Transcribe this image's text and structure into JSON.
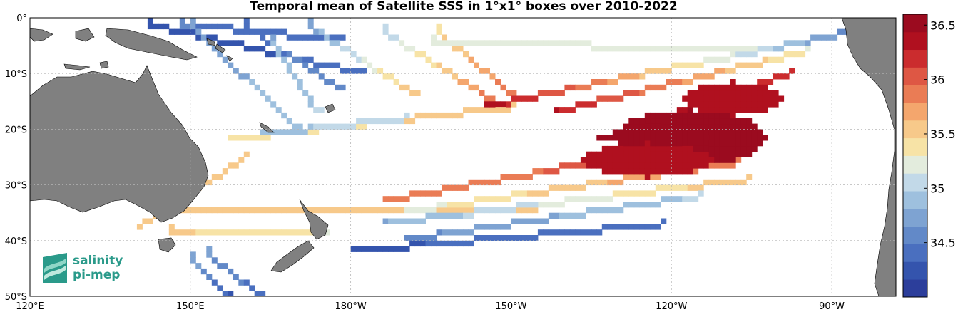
{
  "title": "Temporal mean of Satellite SSS in 1°x1° boxes over 2010-2022",
  "logo": {
    "line1": "salinity",
    "line2": "pi-mep"
  },
  "axes": {
    "x_ticks": [
      {
        "lon": 120,
        "label": "120°E"
      },
      {
        "lon": 150,
        "label": "150°E"
      },
      {
        "lon": 180,
        "label": "180°W"
      },
      {
        "lon": 210,
        "label": "150°W"
      },
      {
        "lon": 240,
        "label": "120°W"
      },
      {
        "lon": 270,
        "label": "90°W"
      }
    ],
    "y_ticks": [
      {
        "lat": 0,
        "label": "0°"
      },
      {
        "lat": -10,
        "label": "10°S"
      },
      {
        "lat": -20,
        "label": "20°S"
      },
      {
        "lat": -30,
        "label": "30°S"
      },
      {
        "lat": -40,
        "label": "40°S"
      },
      {
        "lat": -50,
        "label": "50°S"
      }
    ],
    "lon_range": [
      120,
      282
    ],
    "lat_range": [
      -50,
      0
    ],
    "grid": true
  },
  "colorbar": {
    "range": [
      34,
      36.6
    ],
    "ticks": [
      "36.5",
      "36",
      "35.5",
      "35",
      "34.5"
    ],
    "tick_values": [
      36.5,
      36.0,
      35.5,
      35.0,
      34.5
    ],
    "colors": [
      "#2c3e9b",
      "#3454ad",
      "#4a6fbf",
      "#6289c8",
      "#7ea3d2",
      "#9ec0de",
      "#c2d9e8",
      "#e3ecdd",
      "#f7e3a6",
      "#f7c98a",
      "#f4a66d",
      "#ea7c55",
      "#de5744",
      "#cb2c2e",
      "#b0101f",
      "#9b0b1f"
    ]
  },
  "chart_data": {
    "type": "heatmap",
    "title": "Temporal mean of Satellite SSS in 1°x1° boxes over 2010-2022",
    "variable": "SSS",
    "color_range": [
      34,
      36.6
    ],
    "xlabel": "",
    "ylabel": "",
    "x_ticks": [
      "120°E",
      "150°E",
      "180°W",
      "150°W",
      "120°W",
      "90°W"
    ],
    "y_ticks": [
      "0°",
      "10°S",
      "20°S",
      "30°S",
      "40°S",
      "50°S"
    ],
    "colorbar_ticks": [
      34.5,
      35,
      35.5,
      36,
      36.5
    ],
    "tracks": [
      {
        "from": [
          142,
          -1
        ],
        "to": [
          182,
          -10
        ],
        "sss_from": 34.2,
        "sss_to": 34.4
      },
      {
        "from": [
          148,
          -1
        ],
        "to": [
          178,
          -4
        ],
        "sss_from": 34.5,
        "sss_to": 34.4
      },
      {
        "from": [
          160,
          -1
        ],
        "to": [
          178,
          -13
        ],
        "sss_from": 34.4,
        "sss_to": 34.6
      },
      {
        "from": [
          172,
          -1
        ],
        "to": [
          192,
          -14
        ],
        "sss_from": 34.7,
        "sss_to": 35.6
      },
      {
        "from": [
          186,
          -2
        ],
        "to": [
          208,
          -16
        ],
        "sss_from": 35.0,
        "sss_to": 36.0
      },
      {
        "from": [
          196,
          -2
        ],
        "to": [
          210,
          -14
        ],
        "sss_from": 35.4,
        "sss_to": 35.9
      },
      {
        "from": [
          150,
          -1
        ],
        "to": [
          170,
          -20
        ],
        "sss_from": 34.7,
        "sss_to": 34.9
      },
      {
        "from": [
          165,
          -4
        ],
        "to": [
          174,
          -17
        ],
        "sss_from": 34.8,
        "sss_to": 35.0
      },
      {
        "from": [
          157,
          -22
        ],
        "to": [
          210,
          -16
        ],
        "sss_from": 35.3,
        "sss_to": 35.6
      },
      {
        "from": [
          163,
          -21
        ],
        "to": [
          190,
          -18
        ],
        "sss_from": 34.9,
        "sss_to": 35.1
      },
      {
        "from": [
          160,
          -25
        ],
        "to": [
          140,
          -38
        ],
        "sss_from": 35.5,
        "sss_to": 35.5
      },
      {
        "from": [
          146,
          -35
        ],
        "to": [
          215,
          -34
        ],
        "sss_from": 35.5,
        "sss_to": 35.5
      },
      {
        "from": [
          146,
          -38
        ],
        "to": [
          175,
          -39
        ],
        "sss_from": 35.5,
        "sss_to": 35.3
      },
      {
        "from": [
          186,
          -33
        ],
        "to": [
          247,
          -22
        ],
        "sss_from": 35.8,
        "sss_to": 36.1
      },
      {
        "from": [
          190,
          -35
        ],
        "to": [
          252,
          -26
        ],
        "sss_from": 35.2,
        "sss_to": 35.9
      },
      {
        "from": [
          186,
          -37
        ],
        "to": [
          254,
          -29
        ],
        "sss_from": 34.8,
        "sss_to": 35.6
      },
      {
        "from": [
          190,
          -40
        ],
        "to": [
          245,
          -32
        ],
        "sss_from": 34.6,
        "sss_to": 35.0
      },
      {
        "from": [
          180,
          -42
        ],
        "to": [
          238,
          -37
        ],
        "sss_from": 34.3,
        "sss_to": 34.4
      },
      {
        "from": [
          205,
          -16
        ],
        "to": [
          276,
          -2
        ],
        "sss_from": 36.4,
        "sss_to": 34.5
      },
      {
        "from": [
          218,
          -17
        ],
        "to": [
          265,
          -6
        ],
        "sss_from": 36.3,
        "sss_to": 35.3
      },
      {
        "from": [
          226,
          -22
        ],
        "to": [
          262,
          -10
        ],
        "sss_from": 36.5,
        "sss_to": 36.2
      },
      {
        "from": [
          195,
          -4
        ],
        "to": [
          255,
          -6
        ],
        "sss_from": 35.3,
        "sss_to": 35.2
      },
      {
        "from": [
          150,
          -43
        ],
        "to": [
          157,
          -50
        ],
        "sss_from": 34.8,
        "sss_to": 34.3
      },
      {
        "from": [
          153,
          -42
        ],
        "to": [
          163,
          -50
        ],
        "sss_from": 34.7,
        "sss_to": 34.4
      }
    ],
    "blobs": [
      {
        "center": [
          243,
          -22
        ],
        "radius": [
          14,
          5
        ],
        "sss": 36.6
      },
      {
        "center": [
          235,
          -26
        ],
        "radius": [
          12,
          3
        ],
        "sss": 36.3
      },
      {
        "center": [
          251,
          -15
        ],
        "radius": [
          9,
          3
        ],
        "sss": 36.3
      }
    ]
  }
}
